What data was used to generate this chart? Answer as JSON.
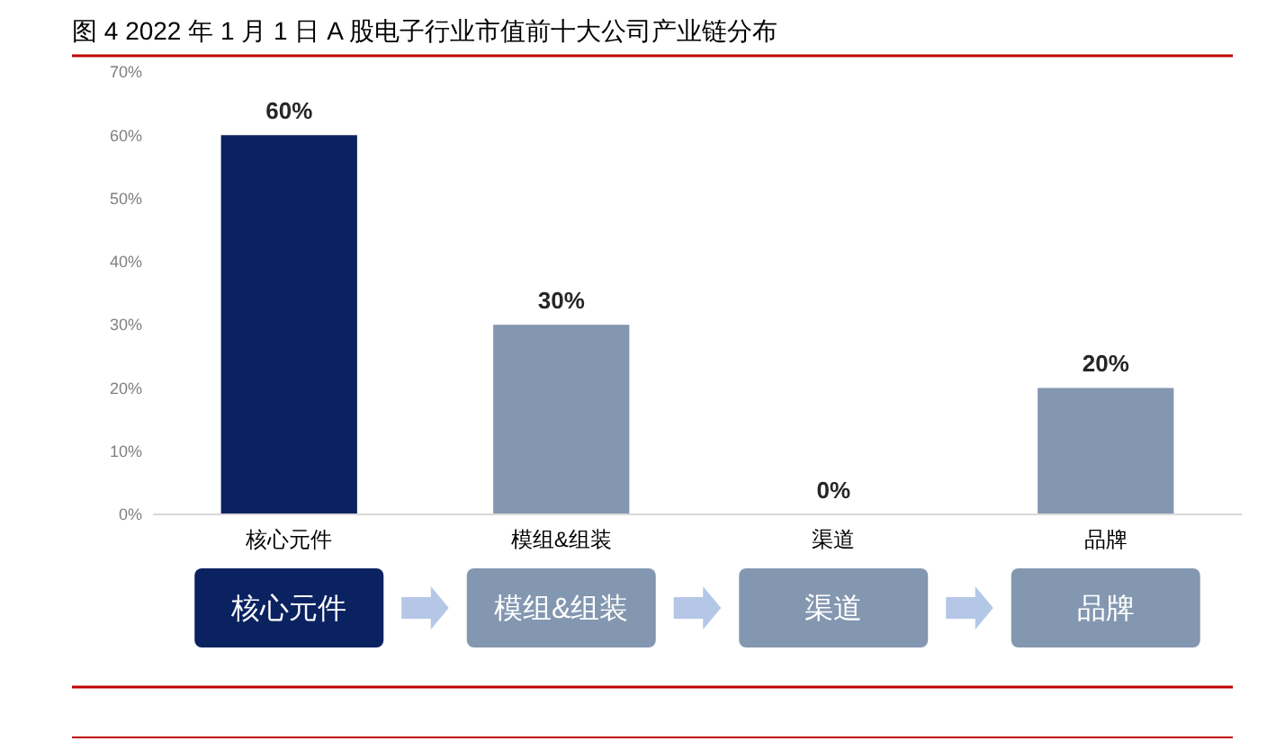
{
  "chart_data": {
    "type": "bar",
    "title": "图 4 2022 年 1 月 1 日 A 股电子行业市值前十大公司产业链分布",
    "categories": [
      "核心元件",
      "模组&组装",
      "渠道",
      "品牌"
    ],
    "values": [
      60,
      30,
      0,
      20
    ],
    "colors": [
      "#0b2261",
      "#8497b0",
      "#8497b0",
      "#8497b0"
    ],
    "value_labels": [
      "60%",
      "30%",
      "0%",
      "20%"
    ],
    "ylim": [
      0,
      70
    ],
    "yticks": [
      {
        "value": 0,
        "label": "0%"
      },
      {
        "value": 10,
        "label": "10%"
      },
      {
        "value": 20,
        "label": "20%"
      },
      {
        "value": 30,
        "label": "30%"
      },
      {
        "value": 40,
        "label": "40%"
      },
      {
        "value": 50,
        "label": "50%"
      },
      {
        "value": 60,
        "label": "60%"
      },
      {
        "value": 70,
        "label": "70%"
      }
    ],
    "grid": false,
    "annotations": [
      "核心元件",
      "模组&组装",
      "渠道",
      "品牌"
    ]
  }
}
